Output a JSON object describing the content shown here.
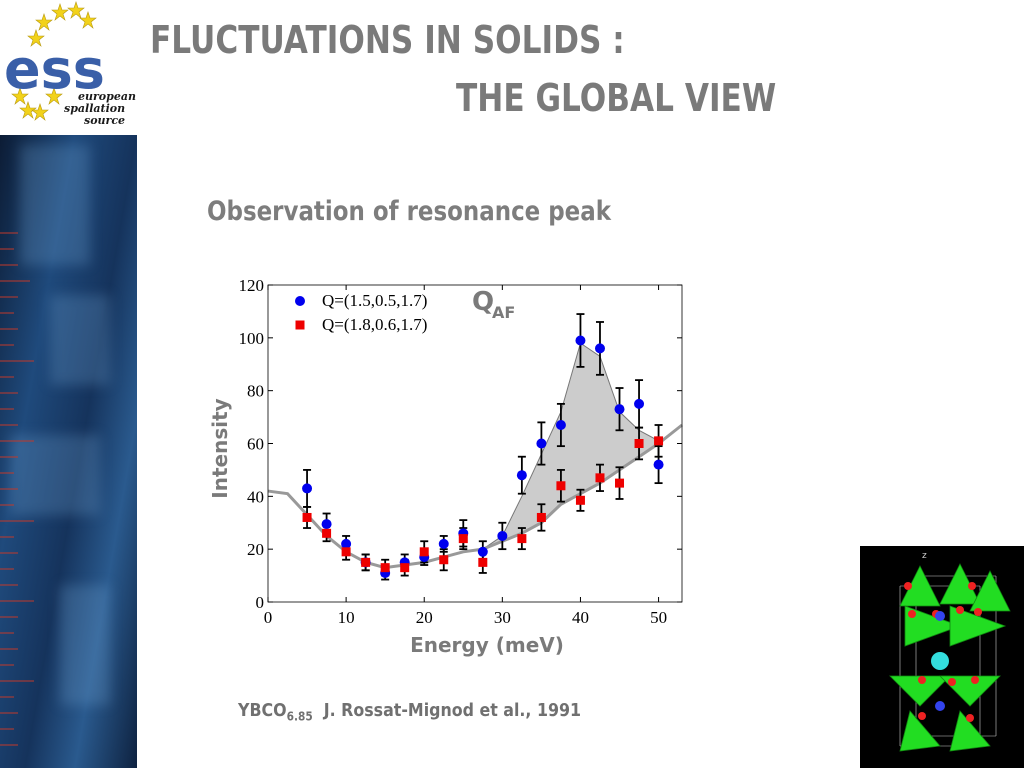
{
  "logo": {
    "main_text": "ess",
    "line1": "european",
    "line2": "spallation",
    "line3": "source"
  },
  "title": {
    "line1": "FLUCTUATIONS IN SOLIDS :",
    "line2": "THE GLOBAL VIEW"
  },
  "subtitle": "Observation of resonance peak",
  "citation": {
    "compound": "YBCO",
    "subscript": "6.85",
    "reference": "J. Rossat-Mignod et al., 1991"
  },
  "crystal_label": "z",
  "colors": {
    "title": "#7a7a7a",
    "series1": "#0000ee",
    "series2": "#ee0000",
    "fill": "#cccccc"
  },
  "chart_data": {
    "type": "scatter",
    "xlabel": "Energy (meV)",
    "ylabel": "Intensity",
    "xlim": [
      0,
      53
    ],
    "ylim": [
      0,
      120
    ],
    "xticks": [
      "0",
      "10",
      "20",
      "30",
      "40",
      "50"
    ],
    "yticks": [
      "0",
      "20",
      "40",
      "60",
      "80",
      "100",
      "120"
    ],
    "annotation": {
      "main": "Q",
      "sub": "AF"
    },
    "legend_position": "top-left",
    "series": [
      {
        "name": "Q=(1.5,0.5,1.7)",
        "x": [
          5,
          7.5,
          10,
          12.5,
          15,
          17.5,
          20,
          22.5,
          25,
          27.5,
          30,
          32.5,
          35,
          37.5,
          40,
          42.5,
          45,
          47.5,
          50
        ],
        "y": [
          43,
          29.5,
          22,
          15,
          11,
          15,
          17,
          22,
          26,
          19,
          25,
          48,
          60,
          67,
          99,
          96,
          73,
          75,
          52
        ],
        "err": [
          7,
          4,
          3,
          3,
          2.5,
          3,
          3,
          3,
          5,
          4,
          5,
          7,
          8,
          8,
          10,
          10,
          8,
          9,
          7
        ]
      },
      {
        "name": "Q=(1.8,0.6,1.7)",
        "x": [
          5,
          7.5,
          10,
          12.5,
          15,
          17.5,
          20,
          22.5,
          25,
          27.5,
          32.5,
          35,
          37.5,
          40,
          42.5,
          45,
          47.5,
          50
        ],
        "y": [
          32,
          26,
          19,
          15,
          13,
          13,
          19,
          16,
          24,
          15,
          24,
          32,
          44,
          38.5,
          47,
          45,
          60,
          61
        ],
        "err": [
          4,
          3,
          3,
          3,
          3,
          3,
          4,
          4,
          4,
          4,
          4,
          5,
          6,
          4,
          5,
          6,
          6,
          6
        ]
      }
    ],
    "lower_curve": {
      "x": [
        0,
        2.5,
        5,
        7.5,
        10,
        12.5,
        15,
        17.5,
        20,
        22.5,
        25,
        27.5,
        30,
        32.5,
        35,
        37.5,
        40,
        42.5,
        45,
        47.5,
        50,
        53
      ],
      "y": [
        42,
        41,
        33,
        25,
        19,
        15,
        13,
        14,
        15,
        17,
        19,
        20,
        23,
        26,
        30,
        37,
        41,
        45,
        50,
        55,
        60,
        67
      ]
    },
    "upper_curve": {
      "x": [
        27.5,
        30,
        32.5,
        35,
        37.5,
        40,
        42.5,
        45,
        47.5,
        50
      ],
      "y": [
        20,
        25,
        40,
        56,
        72,
        98,
        93,
        72,
        65,
        61
      ]
    }
  }
}
